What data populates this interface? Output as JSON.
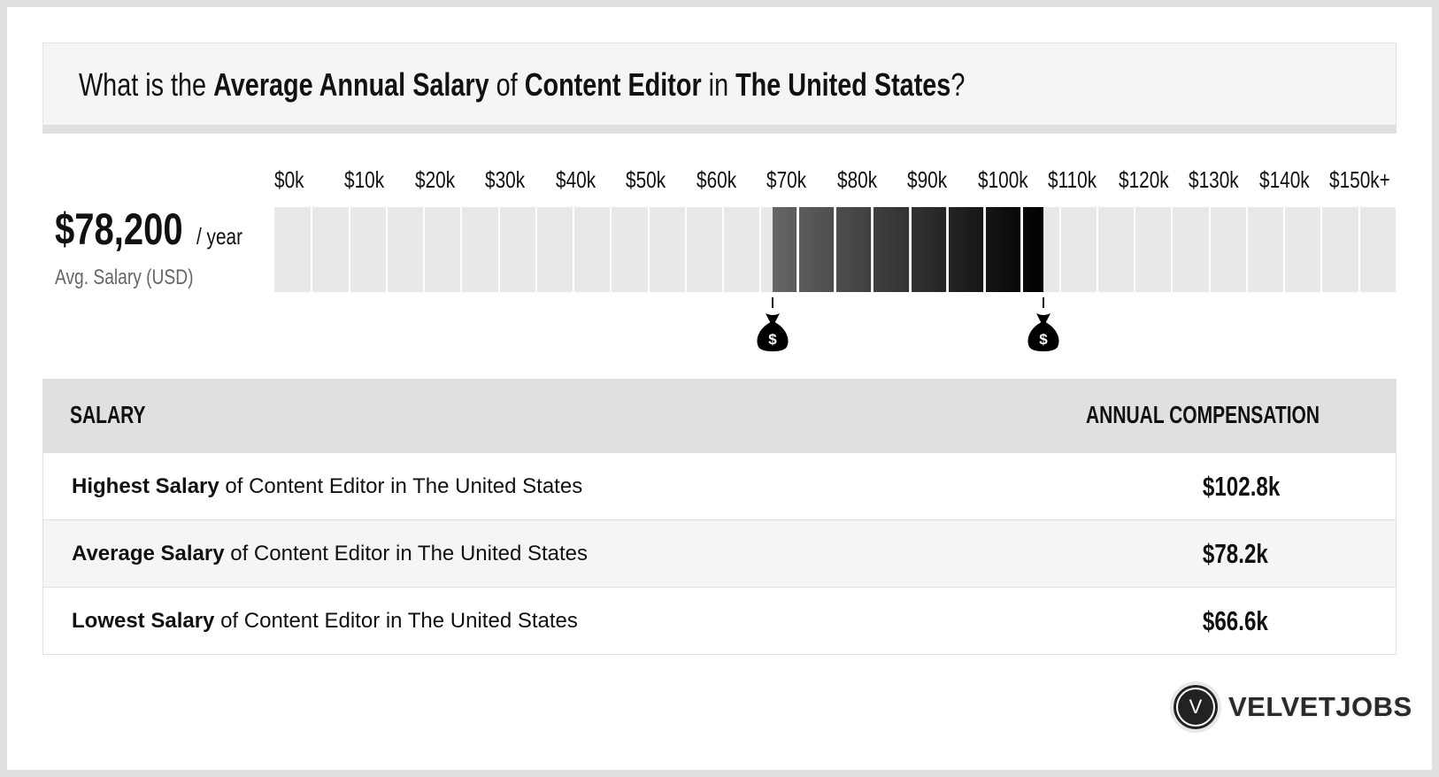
{
  "header": {
    "q_prefix": "What is the ",
    "q_bold1": "Average Annual Salary",
    "q_of": " of ",
    "q_bold2": "Content Editor",
    "q_in": " in ",
    "q_bold3": "The United States",
    "q_suffix": "?"
  },
  "summary": {
    "amount": "$78,200",
    "period": "/ year",
    "label": "Avg. Salary (USD)"
  },
  "range_bar": {
    "ticks": [
      "$0k",
      "$10k",
      "$20k",
      "$30k",
      "$40k",
      "$50k",
      "$60k",
      "$70k",
      "$80k",
      "$90k",
      "$100k",
      "$110k",
      "$120k",
      "$130k",
      "$140k",
      "$150k+"
    ],
    "scale_max_k": 150,
    "bin_k": 5,
    "low_k": 66.6,
    "avg_k": 78.2,
    "high_k": 102.8,
    "colors": {
      "empty": "#e8e8e8",
      "shade_start": "#666666",
      "shade_end": "#000000"
    },
    "marker_icon": "money-bag-icon"
  },
  "table": {
    "col_salary": "SALARY",
    "col_comp": "ANNUAL COMPENSATION",
    "rows": [
      {
        "bold": "Highest Salary",
        "rest": " of Content Editor in The United States",
        "value": "$102.8k"
      },
      {
        "bold": "Average Salary",
        "rest": " of Content Editor in The United States",
        "value": "$78.2k"
      },
      {
        "bold": "Lowest Salary",
        "rest": " of Content Editor in The United States",
        "value": "$66.6k"
      }
    ]
  },
  "logo": {
    "mark": "V",
    "name": "VELVETJOBS"
  }
}
